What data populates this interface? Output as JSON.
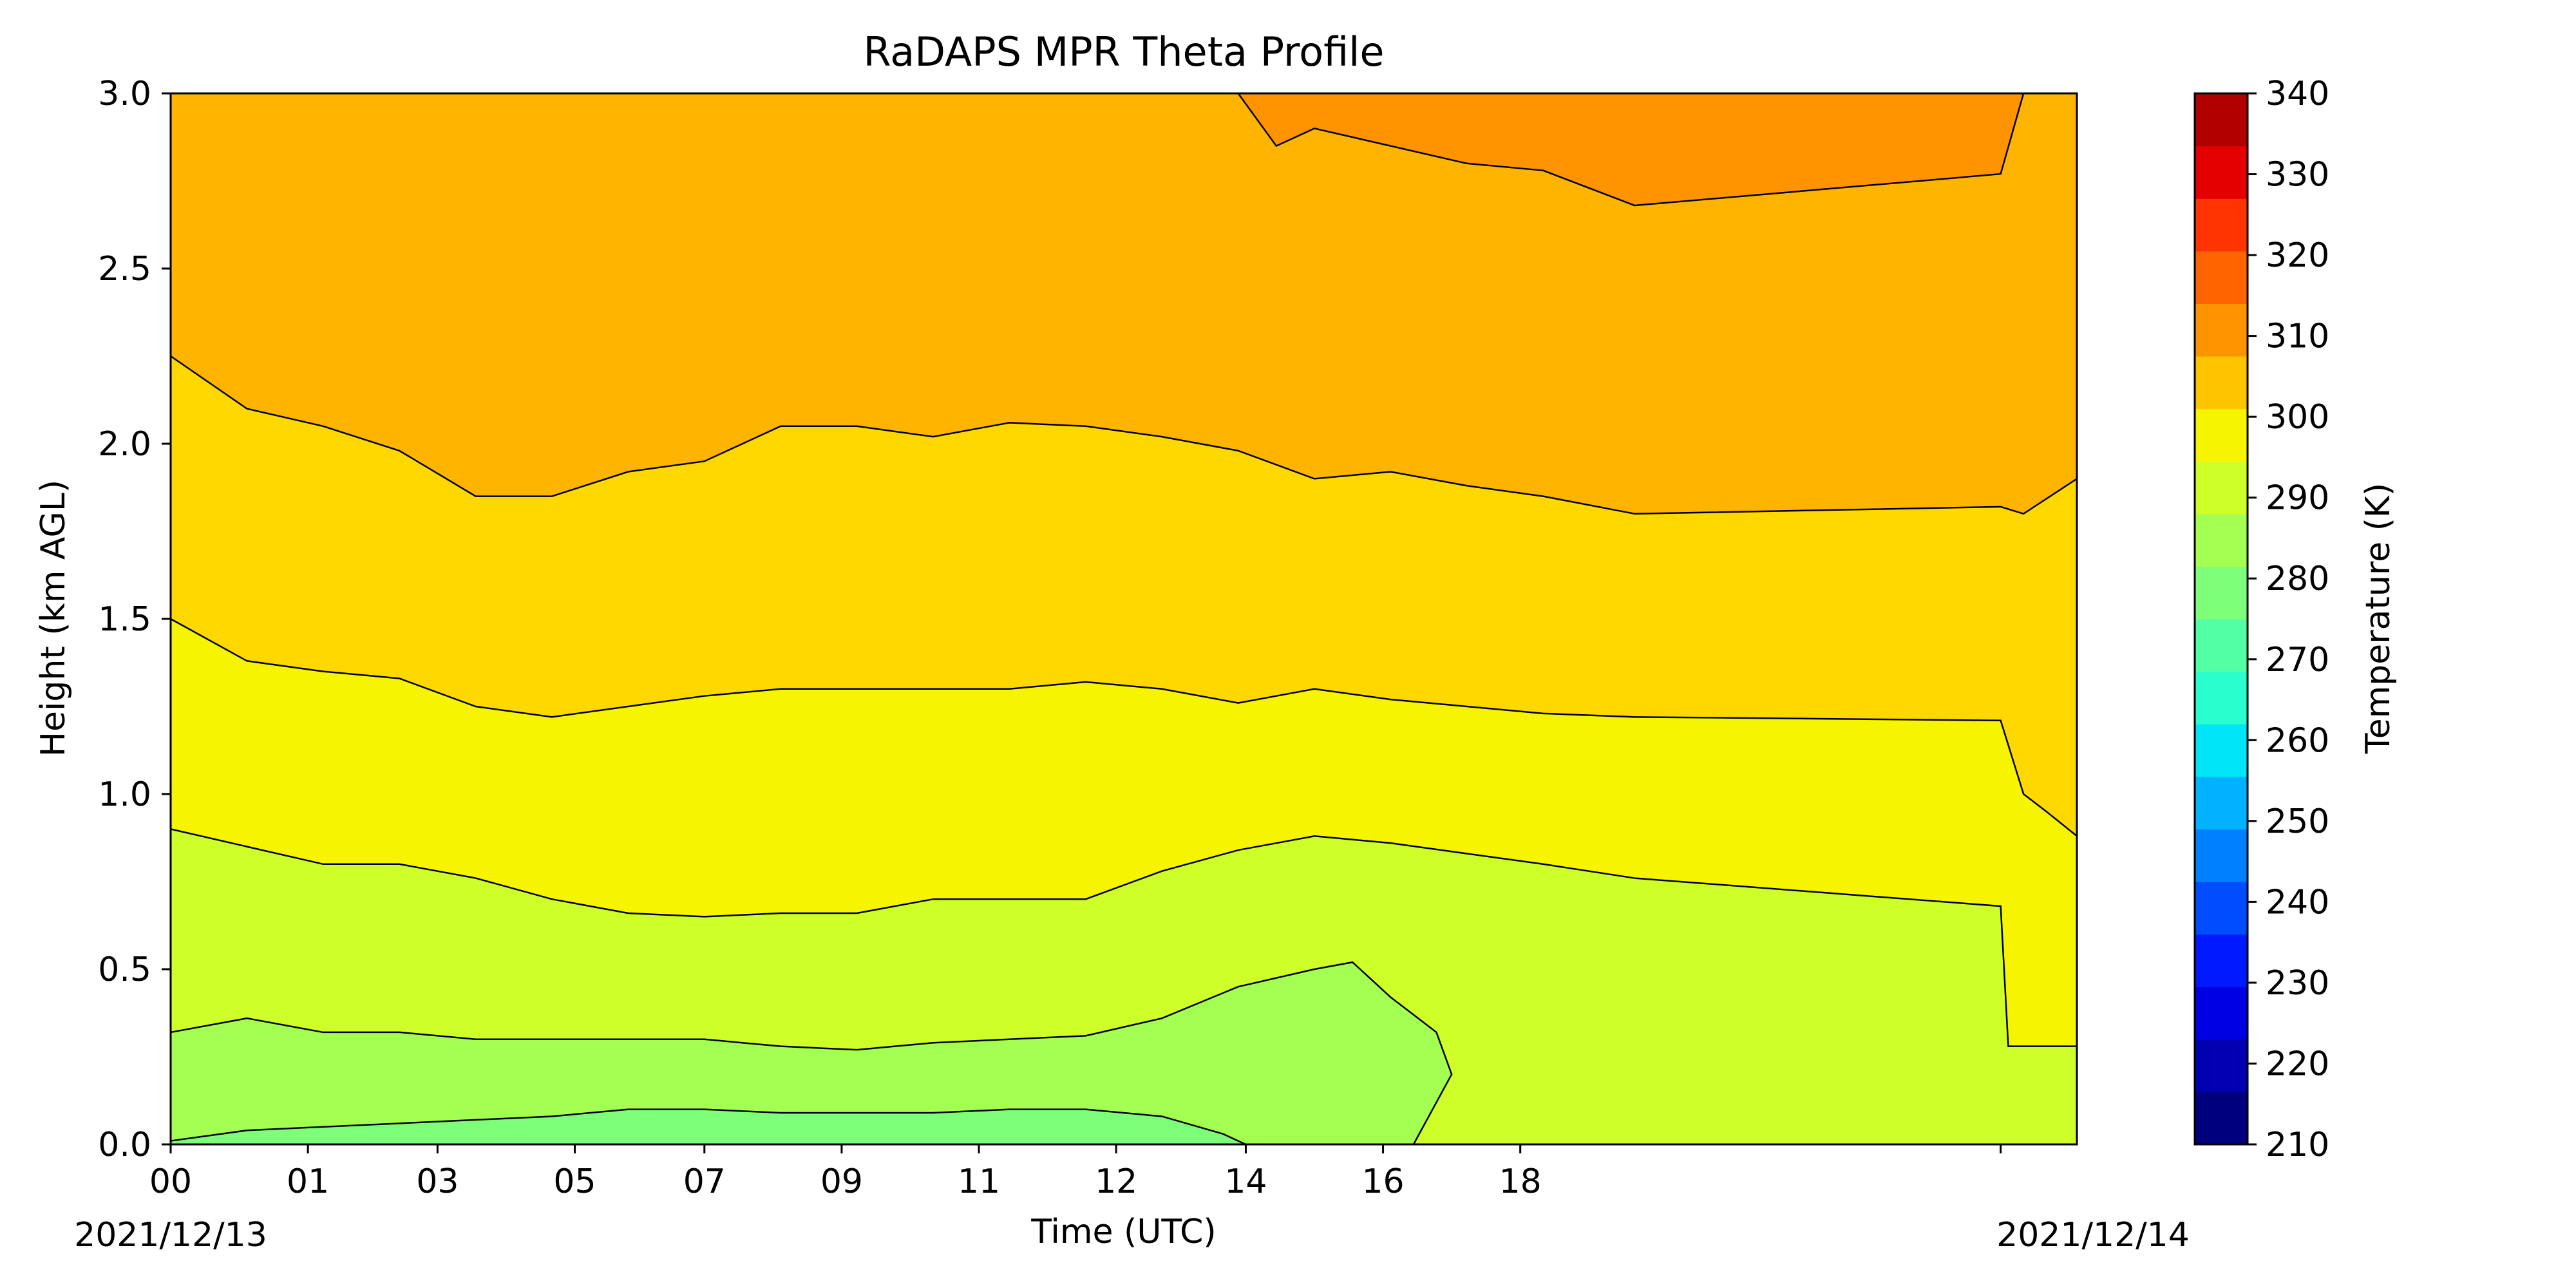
{
  "chart_data": {
    "type": "heatmap",
    "title": "RaDAPS MPR Theta Profile",
    "xlabel": "Time (UTC)",
    "ylabel": "Height (km AGL)",
    "x_range_hours": [
      0,
      24
    ],
    "ylim": [
      0,
      3.0
    ],
    "x_ticks": [
      {
        "hour": 0.0,
        "label": "00"
      },
      {
        "hour": 1.8,
        "label": "01"
      },
      {
        "hour": 3.5,
        "label": "03"
      },
      {
        "hour": 5.3,
        "label": "05"
      },
      {
        "hour": 7.0,
        "label": "07"
      },
      {
        "hour": 8.8,
        "label": "09"
      },
      {
        "hour": 10.6,
        "label": "11"
      },
      {
        "hour": 12.4,
        "label": "12"
      },
      {
        "hour": 14.1,
        "label": "14"
      },
      {
        "hour": 15.9,
        "label": "16"
      },
      {
        "hour": 17.7,
        "label": "18"
      },
      {
        "hour": 24.0,
        "label": ""
      }
    ],
    "date_labels": {
      "start": "2021/12/13",
      "end": "2021/12/14"
    },
    "y_ticks": [
      {
        "value": 0.0,
        "label": "0.0"
      },
      {
        "value": 0.5,
        "label": "0.5"
      },
      {
        "value": 1.0,
        "label": "1.0"
      },
      {
        "value": 1.5,
        "label": "1.5"
      },
      {
        "value": 2.0,
        "label": "2.0"
      },
      {
        "value": 2.5,
        "label": "2.5"
      },
      {
        "value": 3.0,
        "label": "3.0"
      }
    ],
    "colorbar": {
      "label": "Temperature (K)",
      "min": 210,
      "max": 340,
      "step": 5,
      "tick_values": [
        210,
        220,
        230,
        240,
        250,
        260,
        270,
        280,
        290,
        300,
        310,
        320,
        330,
        340
      ],
      "colors": [
        "#00007f",
        "#0000b2",
        "#0000e5",
        "#001aff",
        "#004dff",
        "#0080ff",
        "#00b2ff",
        "#00e5f7",
        "#29ffce",
        "#53ffa4",
        "#7dff7a",
        "#a4ff53",
        "#ceff29",
        "#f7f400",
        "#ffc400",
        "#ff9400",
        "#ff6400",
        "#ff3400",
        "#e50000",
        "#b20000"
      ]
    },
    "bands": [
      {
        "range": [
          275,
          280
        ],
        "color": "#7dff7a"
      },
      {
        "range": [
          280,
          285
        ],
        "color": "#a4ff53"
      },
      {
        "range": [
          285,
          290
        ],
        "color": "#ceff29"
      },
      {
        "range": [
          290,
          295
        ],
        "color": "#f7f400"
      },
      {
        "range": [
          295,
          300
        ],
        "color": "#ffd800"
      },
      {
        "range": [
          300,
          305
        ],
        "color": "#ffb400"
      },
      {
        "range": [
          305,
          310
        ],
        "color": "#ff9400"
      }
    ],
    "contours": [
      {
        "level": 280,
        "points": [
          [
            0,
            0.01
          ],
          [
            1,
            0.04
          ],
          [
            2,
            0.05
          ],
          [
            3,
            0.06
          ],
          [
            5,
            0.08
          ],
          [
            6,
            0.1
          ],
          [
            7,
            0.1
          ],
          [
            8,
            0.09
          ],
          [
            10,
            0.09
          ],
          [
            11,
            0.1
          ],
          [
            12,
            0.1
          ],
          [
            13,
            0.08
          ],
          [
            13.8,
            0.03
          ],
          [
            14.1,
            0.0
          ]
        ]
      },
      {
        "level": 285,
        "points": [
          [
            0,
            0.32
          ],
          [
            1,
            0.36
          ],
          [
            2,
            0.32
          ],
          [
            3,
            0.32
          ],
          [
            4,
            0.3
          ],
          [
            5,
            0.3
          ],
          [
            6,
            0.3
          ],
          [
            7,
            0.3
          ],
          [
            8,
            0.28
          ],
          [
            9,
            0.27
          ],
          [
            10,
            0.29
          ],
          [
            11,
            0.3
          ],
          [
            12,
            0.31
          ],
          [
            13,
            0.36
          ],
          [
            14,
            0.45
          ],
          [
            15,
            0.5
          ],
          [
            15.5,
            0.52
          ],
          [
            16,
            0.42
          ],
          [
            16.6,
            0.32
          ],
          [
            16.8,
            0.2
          ],
          [
            16.5,
            0.08
          ],
          [
            16.3,
            0.0
          ]
        ]
      },
      {
        "level": 290,
        "points": [
          [
            0,
            0.9
          ],
          [
            1,
            0.85
          ],
          [
            2,
            0.8
          ],
          [
            3,
            0.8
          ],
          [
            4,
            0.76
          ],
          [
            5,
            0.7
          ],
          [
            6,
            0.66
          ],
          [
            7,
            0.65
          ],
          [
            8,
            0.66
          ],
          [
            9,
            0.66
          ],
          [
            10,
            0.7
          ],
          [
            11,
            0.7
          ],
          [
            12,
            0.7
          ],
          [
            13,
            0.78
          ],
          [
            14,
            0.84
          ],
          [
            15,
            0.88
          ],
          [
            16,
            0.86
          ],
          [
            17,
            0.83
          ],
          [
            18,
            0.8
          ],
          [
            19.2,
            0.76
          ],
          [
            24,
            0.68
          ],
          [
            24.1,
            0.28
          ],
          [
            25,
            0.28
          ]
        ]
      },
      {
        "level": 295,
        "points": [
          [
            0,
            1.5
          ],
          [
            1,
            1.38
          ],
          [
            2,
            1.35
          ],
          [
            3,
            1.33
          ],
          [
            4,
            1.25
          ],
          [
            5,
            1.22
          ],
          [
            6,
            1.25
          ],
          [
            7,
            1.28
          ],
          [
            8,
            1.3
          ],
          [
            9,
            1.3
          ],
          [
            10,
            1.3
          ],
          [
            11,
            1.3
          ],
          [
            12,
            1.32
          ],
          [
            13,
            1.3
          ],
          [
            14,
            1.26
          ],
          [
            15,
            1.3
          ],
          [
            16,
            1.27
          ],
          [
            17,
            1.25
          ],
          [
            18,
            1.23
          ],
          [
            19.2,
            1.22
          ],
          [
            24,
            1.21
          ],
          [
            24.3,
            1.0
          ],
          [
            24.6,
            0.95
          ],
          [
            25,
            0.88
          ]
        ]
      },
      {
        "level": 300,
        "points": [
          [
            0,
            2.25
          ],
          [
            1,
            2.1
          ],
          [
            2,
            2.05
          ],
          [
            3,
            1.98
          ],
          [
            4,
            1.85
          ],
          [
            5,
            1.85
          ],
          [
            6,
            1.92
          ],
          [
            7,
            1.95
          ],
          [
            8,
            2.05
          ],
          [
            9,
            2.05
          ],
          [
            10,
            2.02
          ],
          [
            11,
            2.06
          ],
          [
            12,
            2.05
          ],
          [
            13,
            2.02
          ],
          [
            14,
            1.98
          ],
          [
            15,
            1.9
          ],
          [
            16,
            1.92
          ],
          [
            17,
            1.88
          ],
          [
            18,
            1.85
          ],
          [
            19.2,
            1.8
          ],
          [
            24,
            1.82
          ],
          [
            24.3,
            1.8
          ],
          [
            25,
            1.9
          ]
        ]
      },
      {
        "level": 305,
        "points": [
          [
            14,
            3.0
          ],
          [
            14.5,
            2.85
          ],
          [
            15,
            2.9
          ],
          [
            16,
            2.85
          ],
          [
            17,
            2.8
          ],
          [
            18,
            2.78
          ],
          [
            19.2,
            2.68
          ],
          [
            24,
            2.77
          ],
          [
            24.3,
            3.0
          ]
        ]
      }
    ]
  }
}
